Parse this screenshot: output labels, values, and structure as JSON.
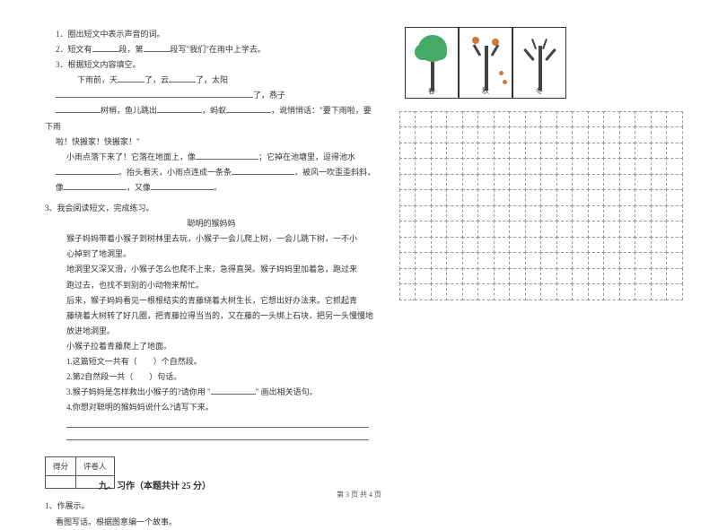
{
  "q1": "1．圈出短文中表示声音的词。",
  "q2_a": "2．短文有",
  "q2_b": "段，第",
  "q2_c": "段写\"我们\"在雨中上学去。",
  "q3": "3．根据短文内容填空。",
  "q3_l1a": "下雨前，天",
  "q3_l1b": "了，云",
  "q3_l1c": "了，太阳",
  "q3_l2a": "了，燕子",
  "q3_l3a": "树梢，鱼儿跳出",
  "q3_l3b": "，蚂蚁",
  "q3_l3c": "，说悄悄话：\"要下雨啦，要下雨",
  "q3_l4": "啦！快搬家！快搬家！\"",
  "q3_l5a": "小雨点落下来了！它落在地面上，像",
  "q3_l5b": "；它掉在池塘里，逗得池水",
  "q3_l6a": "。抬头看天，小雨点连成一条条",
  "q3_l6b": "，被风一吹歪歪斜斜，",
  "q3_l7a": "像",
  "q3_l7b": "，又像",
  "q3_l7c": "。",
  "q4": "3、我会阅读短文，完成练习。",
  "title2": "聪明的猴妈妈",
  "p1": "猴子妈妈带着小猴子到树林里去玩，小猴子一会儿爬上树，一会儿跳下树，一不小",
  "p1b": "心掉到了地洞里。",
  "p2": "地洞里又深又滑，小猴子怎么也爬不上来，急得直哭。猴子妈妈里加着急，跑过来",
  "p2b": "跑过去，也找不到别的小动物来帮忙。",
  "p3": "后来，猴子妈妈看见一根根结实的青藤绕着大树生长，它想出好办法来。它抓起青",
  "p3b": "藤绕着大树转了好几圈，把青藤拉得当当的，又在藤的一头绑上石块，把另一头慢慢地",
  "p3c": "放进地洞里。",
  "p4": "小猴子拉着青藤爬上了地面。",
  "sq1": "1.这篇短文一共有（　　）个自然段。",
  "sq2": "2.第2自然段一共（　　）句话。",
  "sq3a": "3.猴子妈妈是怎样救出小猴子的?请你用 \"",
  "sq3b": "\" 画出相关语句。",
  "sq4": "4.你想对聪明的猴妈妈说什么?请写下来。",
  "score_h1": "得分",
  "score_h2": "评卷人",
  "section9": "九、习作（本题共计 25 分）",
  "w1": "1、作展示。",
  "w2": "看图写话。根据图意编一个故事。",
  "pic_labels": [
    "春",
    "秋",
    "冬"
  ],
  "footer": "第 3 页 共 4 页",
  "grid": {
    "rows": 12,
    "cols": 18
  }
}
